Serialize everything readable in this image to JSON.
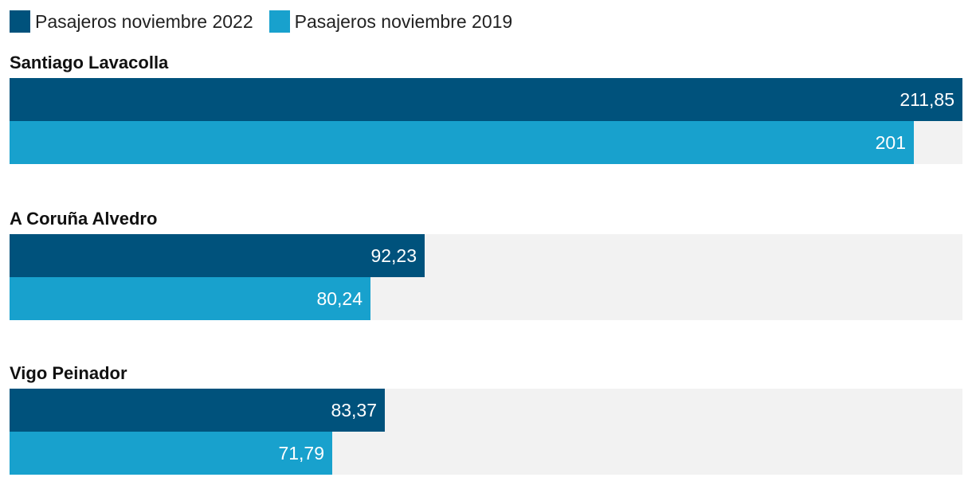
{
  "chart_data": {
    "type": "bar",
    "orientation": "horizontal",
    "title": "",
    "xlabel": "",
    "ylabel": "",
    "xlim": [
      0,
      211.85
    ],
    "grid": false,
    "legend": "top-left",
    "categories": [
      "Santiago Lavacolla",
      "A Coruña Alvedro",
      "Vigo Peinador"
    ],
    "series": [
      {
        "name": "Pasajeros noviembre 2022",
        "color": "#00527c",
        "values": [
          211.85,
          92.23,
          83.37
        ],
        "labels": [
          "211,85",
          "92,23",
          "83,37"
        ]
      },
      {
        "name": "Pasajeros noviembre 2019",
        "color": "#18a1cd",
        "values": [
          201,
          80.24,
          71.79
        ],
        "labels": [
          "201",
          "80,24",
          "71,79"
        ]
      }
    ]
  }
}
